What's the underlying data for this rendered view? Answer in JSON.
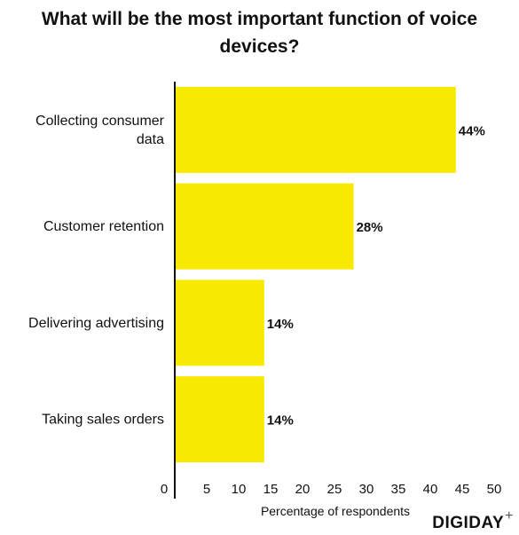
{
  "chart_data": {
    "type": "bar",
    "orientation": "horizontal",
    "title": "What will be the most important function of voice devices?",
    "xlabel": "Percentage of respondents",
    "ylabel": "",
    "categories": [
      "Collecting consumer data",
      "Customer retention",
      "Delivering advertising",
      "Taking sales orders"
    ],
    "category_lines": [
      [
        "Collecting consumer",
        "data"
      ],
      [
        "Customer retention"
      ],
      [
        "Delivering advertising"
      ],
      [
        "Taking sales orders"
      ]
    ],
    "values": [
      44,
      28,
      14,
      14
    ],
    "value_labels": [
      "44%",
      "28%",
      "14%",
      "14%"
    ],
    "xlim": [
      0,
      50
    ],
    "xticks": [
      0,
      5,
      10,
      15,
      20,
      25,
      30,
      35,
      40,
      45,
      50
    ],
    "bar_color": "#f7ea00",
    "grid": false,
    "legend": "none"
  },
  "brand": {
    "name": "DIGIDAY",
    "mark": "+"
  }
}
